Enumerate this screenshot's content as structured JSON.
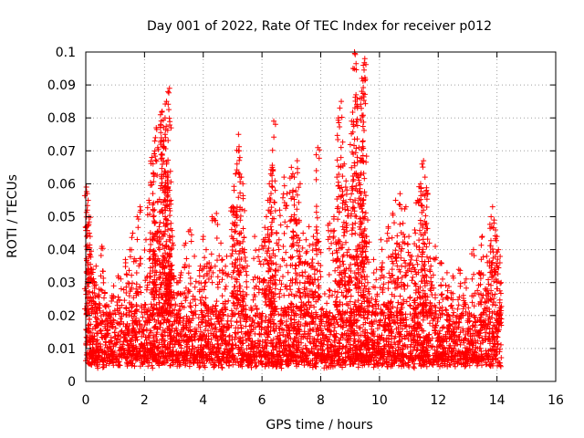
{
  "chart_data": {
    "type": "scatter",
    "title": "Day 001 of 2022, Rate Of TEC Index for receiver p012",
    "xlabel": "GPS time / hours",
    "ylabel": "ROTI / TECUs",
    "xlim": [
      0,
      16
    ],
    "ylim": [
      0,
      0.1
    ],
    "xticks": [
      "0",
      "2",
      "4",
      "6",
      "8",
      "10",
      "12",
      "14",
      "16"
    ],
    "yticks": [
      "0",
      "0.01",
      "0.02",
      "0.03",
      "0.04",
      "0.05",
      "0.06",
      "0.07",
      "0.08",
      "0.09",
      "0.1"
    ],
    "grid": true,
    "marker": "+",
    "color": "#ff0000",
    "series": [
      {
        "points": [
          [
            0.02,
            0.059
          ],
          [
            0.05,
            0.057
          ],
          [
            0.08,
            0.055
          ],
          [
            0.05,
            0.052
          ],
          [
            0.1,
            0.05
          ],
          [
            0.12,
            0.045
          ],
          [
            0.15,
            0.044
          ],
          [
            0.08,
            0.034
          ],
          [
            0.2,
            0.034
          ],
          [
            0.25,
            0.034
          ],
          [
            0.35,
            0.035
          ],
          [
            0.55,
            0.041
          ],
          [
            0.3,
            0.03
          ],
          [
            0.45,
            0.028
          ],
          [
            0.65,
            0.027
          ],
          [
            0.95,
            0.029
          ],
          [
            1.1,
            0.032
          ],
          [
            1.6,
            0.045
          ],
          [
            1.75,
            0.05
          ],
          [
            1.85,
            0.053
          ],
          [
            1.5,
            0.04
          ],
          [
            1.35,
            0.037
          ],
          [
            2.05,
            0.043
          ],
          [
            2.15,
            0.055
          ],
          [
            2.3,
            0.05
          ],
          [
            2.2,
            0.04
          ],
          [
            2.35,
            0.036
          ],
          [
            2.5,
            0.047
          ],
          [
            2.3,
            0.063
          ],
          [
            2.25,
            0.068
          ],
          [
            2.35,
            0.073
          ],
          [
            2.4,
            0.077
          ],
          [
            2.45,
            0.071
          ],
          [
            2.55,
            0.078
          ],
          [
            2.6,
            0.082
          ],
          [
            2.65,
            0.077
          ],
          [
            2.7,
            0.08
          ],
          [
            2.75,
            0.085
          ],
          [
            2.8,
            0.088
          ],
          [
            2.85,
            0.089
          ],
          [
            2.7,
            0.075
          ],
          [
            2.6,
            0.069
          ],
          [
            2.75,
            0.066
          ],
          [
            2.8,
            0.062
          ],
          [
            2.85,
            0.058
          ],
          [
            2.9,
            0.055
          ],
          [
            2.7,
            0.052
          ],
          [
            2.9,
            0.048
          ],
          [
            2.95,
            0.044
          ],
          [
            2.9,
            0.04
          ],
          [
            2.8,
            0.036
          ],
          [
            2.85,
            0.033
          ],
          [
            2.6,
            0.03
          ],
          [
            2.75,
            0.028
          ],
          [
            3.4,
            0.042
          ],
          [
            3.55,
            0.046
          ],
          [
            3.7,
            0.038
          ],
          [
            3.9,
            0.035
          ],
          [
            3.25,
            0.033
          ],
          [
            3.1,
            0.03
          ],
          [
            4.0,
            0.044
          ],
          [
            4.1,
            0.04
          ],
          [
            4.3,
            0.05
          ],
          [
            4.45,
            0.051
          ],
          [
            4.6,
            0.042
          ],
          [
            4.8,
            0.038
          ],
          [
            4.2,
            0.036
          ],
          [
            4.7,
            0.033
          ],
          [
            5.0,
            0.053
          ],
          [
            5.05,
            0.058
          ],
          [
            5.1,
            0.063
          ],
          [
            5.15,
            0.066
          ],
          [
            5.2,
            0.07
          ],
          [
            5.2,
            0.075
          ],
          [
            5.3,
            0.062
          ],
          [
            5.35,
            0.06
          ],
          [
            5.0,
            0.048
          ],
          [
            5.25,
            0.045
          ],
          [
            5.4,
            0.04
          ],
          [
            5.5,
            0.035
          ],
          [
            5.75,
            0.044
          ],
          [
            5.9,
            0.04
          ],
          [
            6.05,
            0.043
          ],
          [
            6.15,
            0.05
          ],
          [
            6.2,
            0.055
          ],
          [
            6.25,
            0.06
          ],
          [
            6.3,
            0.063
          ],
          [
            6.35,
            0.065
          ],
          [
            6.4,
            0.079
          ],
          [
            6.45,
            0.058
          ],
          [
            6.3,
            0.047
          ],
          [
            6.5,
            0.042
          ],
          [
            6.1,
            0.037
          ],
          [
            6.3,
            0.034
          ],
          [
            6.6,
            0.052
          ],
          [
            6.75,
            0.062
          ],
          [
            6.85,
            0.057
          ],
          [
            7.0,
            0.065
          ],
          [
            7.05,
            0.056
          ],
          [
            7.1,
            0.062
          ],
          [
            7.2,
            0.067
          ],
          [
            7.3,
            0.06
          ],
          [
            7.0,
            0.05
          ],
          [
            7.2,
            0.048
          ],
          [
            7.4,
            0.045
          ],
          [
            7.5,
            0.043
          ],
          [
            7.6,
            0.047
          ],
          [
            7.75,
            0.044
          ],
          [
            7.85,
            0.046
          ],
          [
            7.9,
            0.071
          ],
          [
            7.95,
            0.04
          ],
          [
            7.5,
            0.039
          ],
          [
            7.7,
            0.036
          ],
          [
            7.8,
            0.034
          ],
          [
            7.3,
            0.038
          ],
          [
            7.6,
            0.032
          ],
          [
            8.3,
            0.048
          ],
          [
            8.45,
            0.05
          ],
          [
            8.55,
            0.062
          ],
          [
            8.6,
            0.08
          ],
          [
            8.65,
            0.083
          ],
          [
            8.7,
            0.085
          ],
          [
            8.8,
            0.066
          ],
          [
            8.85,
            0.059
          ],
          [
            8.9,
            0.053
          ],
          [
            8.75,
            0.047
          ],
          [
            8.6,
            0.042
          ],
          [
            8.95,
            0.04
          ],
          [
            9.05,
            0.079
          ],
          [
            9.1,
            0.095
          ],
          [
            9.15,
            0.1
          ],
          [
            9.2,
            0.087
          ],
          [
            9.25,
            0.083
          ],
          [
            9.3,
            0.071
          ],
          [
            9.35,
            0.067
          ],
          [
            9.4,
            0.092
          ],
          [
            9.45,
            0.096
          ],
          [
            9.5,
            0.098
          ],
          [
            9.4,
            0.086
          ],
          [
            9.3,
            0.061
          ],
          [
            9.45,
            0.055
          ],
          [
            9.5,
            0.05
          ],
          [
            9.6,
            0.049
          ],
          [
            9.55,
            0.044
          ],
          [
            9.2,
            0.04
          ],
          [
            9.35,
            0.036
          ],
          [
            9.0,
            0.038
          ],
          [
            9.6,
            0.03
          ],
          [
            9.8,
            0.037
          ],
          [
            9.9,
            0.034
          ],
          [
            10.05,
            0.043
          ],
          [
            10.1,
            0.036
          ],
          [
            10.3,
            0.047
          ],
          [
            10.45,
            0.051
          ],
          [
            10.55,
            0.055
          ],
          [
            10.7,
            0.057
          ],
          [
            10.8,
            0.048
          ],
          [
            10.9,
            0.053
          ],
          [
            11.0,
            0.044
          ],
          [
            10.6,
            0.042
          ],
          [
            10.4,
            0.038
          ],
          [
            10.75,
            0.035
          ],
          [
            11.1,
            0.038
          ],
          [
            11.2,
            0.046
          ],
          [
            11.3,
            0.055
          ],
          [
            11.4,
            0.06
          ],
          [
            11.45,
            0.066
          ],
          [
            11.5,
            0.067
          ],
          [
            11.55,
            0.062
          ],
          [
            11.6,
            0.058
          ],
          [
            11.5,
            0.052
          ],
          [
            11.6,
            0.048
          ],
          [
            11.7,
            0.042
          ],
          [
            11.35,
            0.04
          ],
          [
            11.75,
            0.035
          ],
          [
            11.2,
            0.034
          ],
          [
            11.9,
            0.041
          ],
          [
            12.1,
            0.036
          ],
          [
            12.3,
            0.033
          ],
          [
            12.5,
            0.032
          ],
          [
            12.7,
            0.034
          ],
          [
            12.9,
            0.03
          ],
          [
            13.2,
            0.04
          ],
          [
            13.4,
            0.033
          ],
          [
            13.5,
            0.044
          ],
          [
            13.65,
            0.038
          ],
          [
            13.75,
            0.035
          ],
          [
            13.8,
            0.05
          ],
          [
            13.85,
            0.053
          ],
          [
            13.9,
            0.049
          ],
          [
            13.95,
            0.046
          ],
          [
            14.0,
            0.044
          ],
          [
            14.05,
            0.04
          ],
          [
            14.1,
            0.036
          ],
          [
            13.6,
            0.028
          ]
        ]
      }
    ]
  }
}
